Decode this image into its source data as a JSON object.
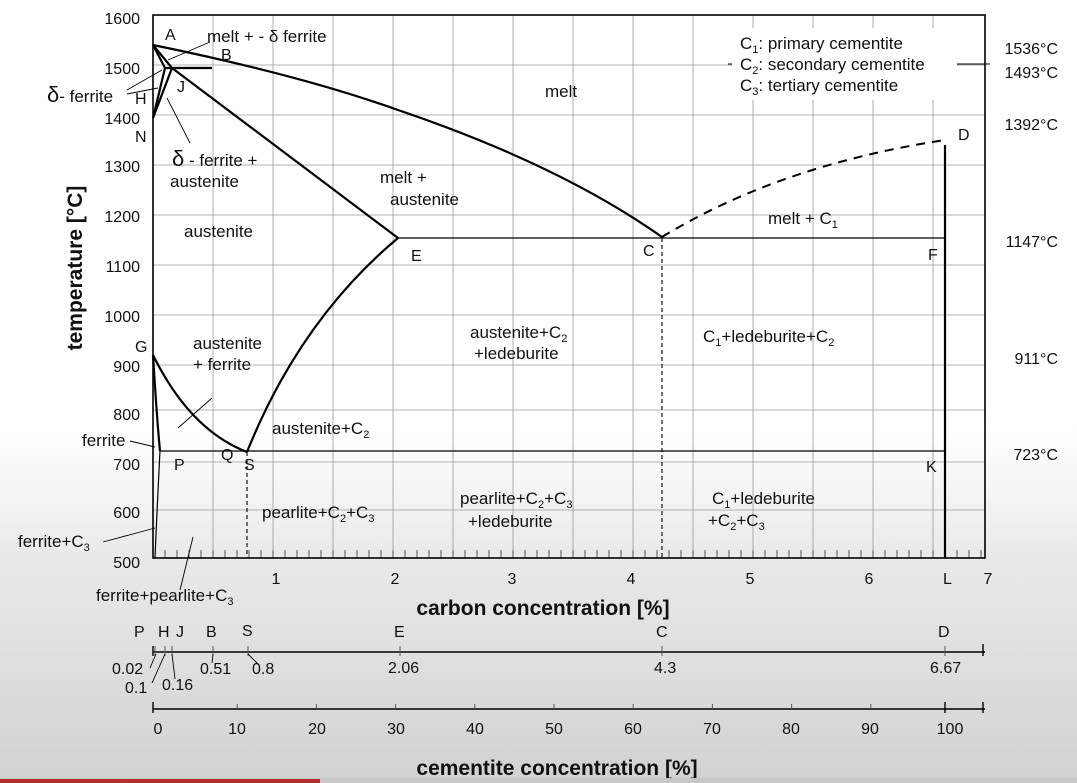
{
  "axes": {
    "ylabel": "temperature [°C]",
    "xlabel": "carbon concentration [%]",
    "x2label": "cementite concentration [%]",
    "yticks": [
      "1600",
      "1500",
      "1400",
      "1300",
      "1200",
      "1100",
      "1000",
      "900",
      "800",
      "700",
      "600",
      "500"
    ],
    "xticks": [
      "1",
      "2",
      "3",
      "4",
      "5",
      "6",
      "7"
    ],
    "cementite_ticks": [
      "0",
      "10",
      "20",
      "30",
      "40",
      "50",
      "60",
      "70",
      "80",
      "90",
      "100"
    ]
  },
  "right_temps": [
    "1536°C",
    "1493°C",
    "1392°C",
    "1147°C",
    "911°C",
    "723°C"
  ],
  "legend": [
    {
      "sym": "C",
      "sub": "1",
      "text": ": primary cementite"
    },
    {
      "sym": "C",
      "sub": "2",
      "text": ": secondary cementite"
    },
    {
      "sym": "C",
      "sub": "3",
      "text": ": tertiary cementite"
    }
  ],
  "points": {
    "A": "A",
    "B": "B",
    "H": "H",
    "J": "J",
    "N": "N",
    "D": "D",
    "E": "E",
    "C": "C",
    "F": "F",
    "G": "G",
    "P": "P",
    "Q": "Q",
    "S": "S",
    "K": "K",
    "L": "L"
  },
  "regions": {
    "melt_delta_a": "melt + - ",
    "delta_sym": "δ",
    "ferrite_word": " ferrite",
    "delta_ferrite_a": "δ",
    "delta_ferrite_b": "- ferrite",
    "delta_austenite_a": "δ",
    "delta_austenite_b": " - ferrite +",
    "delta_austenite_c": "austenite",
    "melt": "melt",
    "melt_austenite_1": "melt +",
    "melt_austenite_2": "austenite",
    "austenite": "austenite",
    "melt_c1_a": "melt + C",
    "melt_c1_sub": "1",
    "austenite_ferrite_1": "austenite",
    "austenite_ferrite_2": "+ ferrite",
    "ferrite": "ferrite",
    "aus_c2_led_a": "austenite+C",
    "aus_c2_led_sub": "2",
    "aus_c2_led_b": "+ledeburite",
    "c1_led_c2_a": "C",
    "c1_led_c2_s1": "1",
    "c1_led_c2_b": "+ledeburite+C",
    "c1_led_c2_s2": "2",
    "aus_c2_a": "austenite+C",
    "aus_c2_sub": "2",
    "pearl_c2c3_a": "pearlite+C",
    "pearl_c2c3_s1": "2",
    "pearl_c2c3_b": "+C",
    "pearl_c2c3_s2": "3",
    "pearl_led_a": "pearlite+C",
    "pearl_led_s1": "2",
    "pearl_led_b": "+C",
    "pearl_led_s2": "3",
    "pearl_led_c": "+ledeburite",
    "c1_led_c2c3_a": "C",
    "c1_led_c2c3_s1": "1",
    "c1_led_c2c3_b": "+ledeburite",
    "c1_led_c2c3_c": "+C",
    "c1_led_c2c3_s2": "2",
    "c1_led_c2c3_d": "+C",
    "c1_led_c2c3_s3": "3",
    "ferrite_c3_a": "ferrite+C",
    "ferrite_c3_sub": "3",
    "ferrite_pearl_a": "ferrite+pearlite+C",
    "ferrite_pearl_sub": "3"
  },
  "composition_scale": {
    "letters": [
      "P",
      "H",
      "J",
      "B",
      "S",
      "E",
      "C",
      "D"
    ],
    "values": [
      "0.02",
      "0.1",
      "0.16",
      "0.51",
      "0.8",
      "2.06",
      "4.3",
      "6.67"
    ]
  }
}
